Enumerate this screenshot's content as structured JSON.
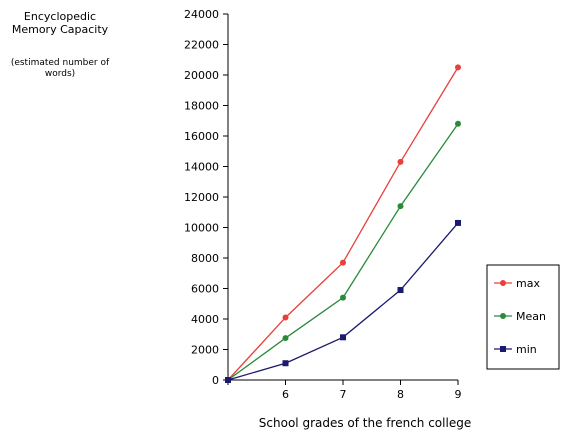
{
  "chart_data": {
    "type": "line",
    "ylabel_lines": [
      "Encyclopedic",
      "Memory Capacity"
    ],
    "ylabel_note_lines": [
      "(estimated number of",
      "words)"
    ],
    "xlabel": "School grades of the french college",
    "x": [
      5,
      6,
      7,
      8,
      9
    ],
    "x_tick_labels": [
      "",
      "6",
      "7",
      "8",
      "9"
    ],
    "xlim": [
      5,
      9
    ],
    "ylim": [
      0,
      24000
    ],
    "y_ticks": [
      0,
      2000,
      4000,
      6000,
      8000,
      10000,
      12000,
      14000,
      16000,
      18000,
      20000,
      22000,
      24000
    ],
    "grid": false,
    "legend_position": "right",
    "series": [
      {
        "name": "max",
        "color": "#e8403a",
        "marker": "circle",
        "values": [
          0,
          4100,
          7700,
          14300,
          20500
        ]
      },
      {
        "name": "Mean",
        "color": "#2a8a3a",
        "marker": "circle",
        "values": [
          0,
          2750,
          5400,
          11400,
          16800
        ]
      },
      {
        "name": "min",
        "color": "#1a1a6e",
        "marker": "square",
        "values": [
          0,
          1100,
          2800,
          5900,
          10300
        ]
      }
    ]
  }
}
